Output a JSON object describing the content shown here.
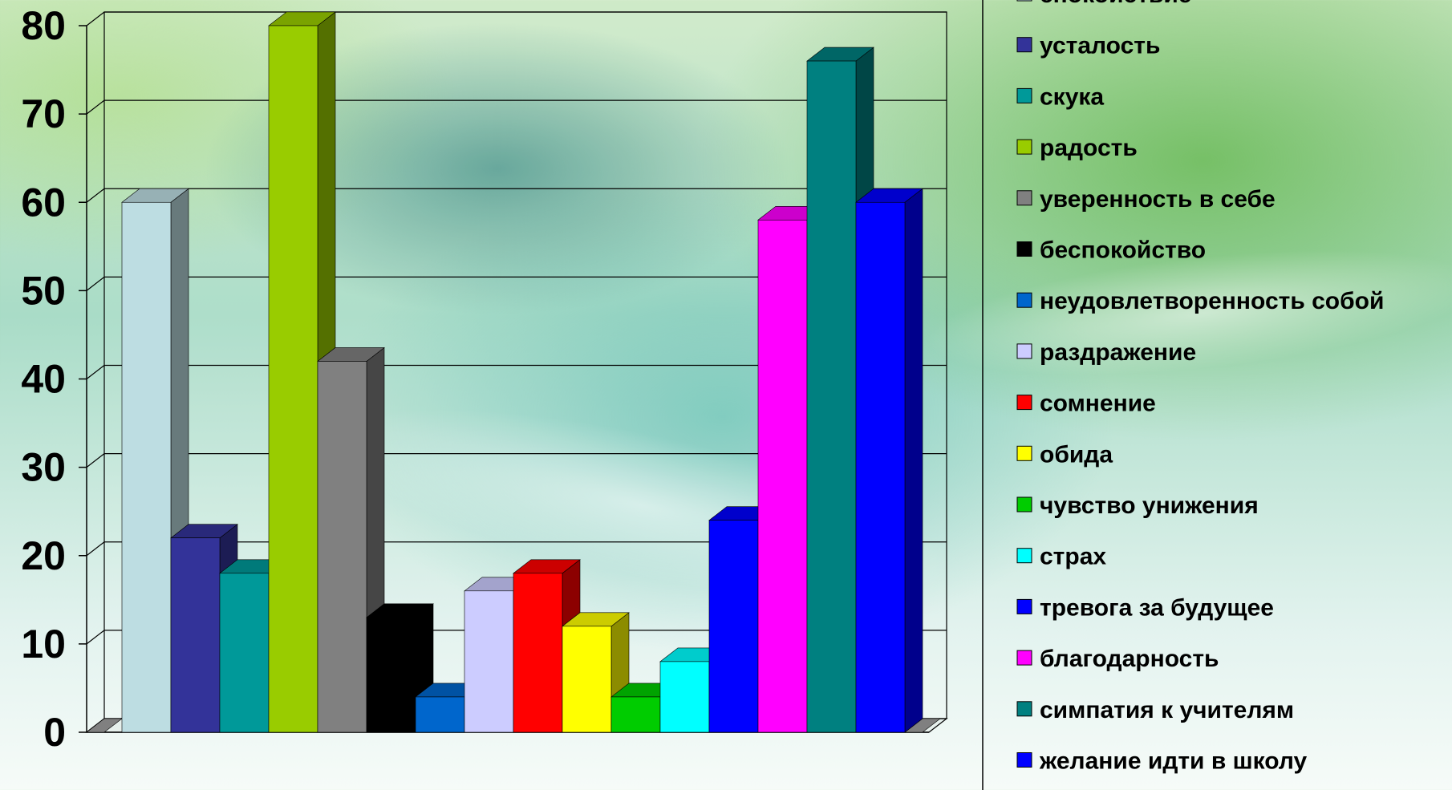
{
  "chart_data": {
    "type": "bar",
    "title": "",
    "xlabel": "",
    "ylabel": "",
    "ylim": [
      0,
      80
    ],
    "yticks": [
      0,
      10,
      20,
      30,
      40,
      50,
      60,
      70,
      80
    ],
    "grid": true,
    "legend_position": "right",
    "three_d": true,
    "categories": [
      "спокойствие",
      "усталость",
      "скука",
      "радость",
      "уверенность в себе",
      "беспокойство",
      "неудовлетворенность собой",
      "раздражение",
      "сомнение",
      "обида",
      "чувство унижения",
      "страх",
      "тревога за будущее",
      "благодарность",
      "симпатия к учителям",
      "желание идти в школу"
    ],
    "values": [
      60,
      22,
      18,
      80,
      42,
      13,
      4,
      16,
      18,
      12,
      4,
      8,
      24,
      58,
      76,
      60
    ],
    "colors": [
      "#BDDDE2",
      "#333399",
      "#009999",
      "#99CC00",
      "#808080",
      "#000000",
      "#0066CC",
      "#CCCCFF",
      "#FF0000",
      "#FFFF00",
      "#00CC00",
      "#00FFFF",
      "#0000FF",
      "#FF00FF",
      "#008080",
      "#0000FF"
    ]
  }
}
